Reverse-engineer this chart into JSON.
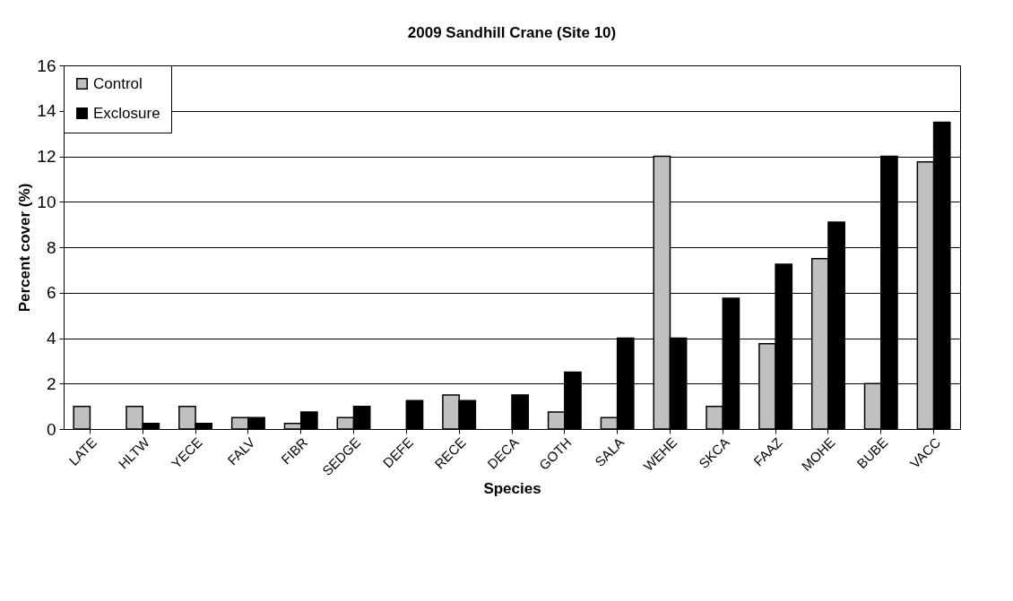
{
  "chart_data": {
    "type": "bar",
    "title": "2009 Sandhill Crane (Site 10)",
    "xlabel": "Species",
    "ylabel": "Percent cover (%)",
    "categories": [
      "LATE",
      "HLTW",
      "YECE",
      "FALV",
      "FIBR",
      "SEDGE",
      "DEFE",
      "RECE",
      "DECA",
      "GOTH",
      "SALA",
      "WEHE",
      "SKCA",
      "FAAZ",
      "MOHE",
      "BUBE",
      "VACC"
    ],
    "series": [
      {
        "name": "Control",
        "color": "#c0c0c0",
        "values": [
          1,
          1,
          1,
          0.5,
          0.25,
          0.5,
          0,
          1.5,
          0,
          0.75,
          0.5,
          12,
          1,
          3.75,
          7.5,
          2,
          11.75
        ]
      },
      {
        "name": "Exclosure",
        "color": "#000000",
        "values": [
          0,
          0.25,
          0.25,
          0.5,
          0.75,
          1,
          1.25,
          1.25,
          1.5,
          2.5,
          4,
          4,
          5.75,
          7.25,
          9.1,
          12,
          13.5
        ]
      }
    ],
    "ylim": [
      0,
      16
    ],
    "yticks": [
      0,
      2,
      4,
      6,
      8,
      10,
      12,
      14,
      16
    ],
    "grid": "y",
    "legend": "top left"
  }
}
